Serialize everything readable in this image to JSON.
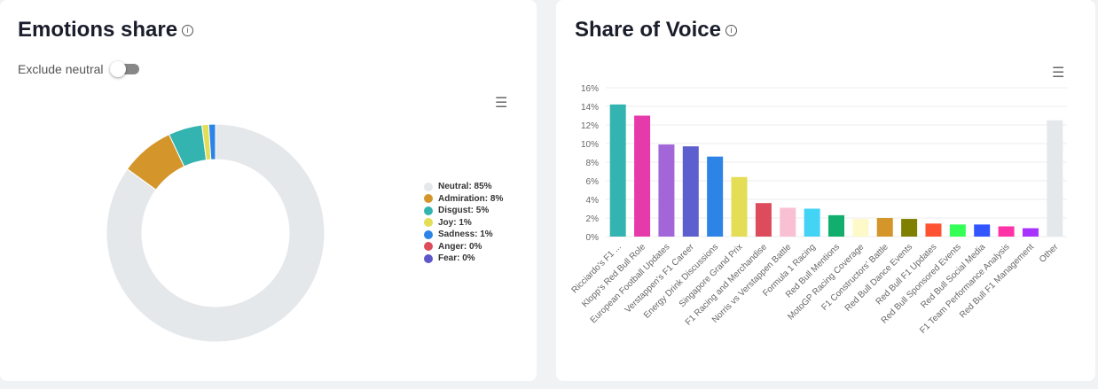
{
  "emotions": {
    "title": "Emotions share",
    "toggle_label": "Exclude neutral",
    "toggle_on": false,
    "chart_data": {
      "type": "pie",
      "donut": true,
      "slices": [
        {
          "label": "Neutral",
          "value": 85,
          "color": "#e5e8eb",
          "legend": "Neutral: 85%"
        },
        {
          "label": "Admiration",
          "value": 8,
          "color": "#d4952a",
          "legend": "Admiration: 8%"
        },
        {
          "label": "Disgust",
          "value": 5,
          "color": "#33b4b0",
          "legend": "Disgust: 5%"
        },
        {
          "label": "Joy",
          "value": 1,
          "color": "#e3de55",
          "legend": "Joy: 1%"
        },
        {
          "label": "Sadness",
          "value": 1,
          "color": "#2b84e6",
          "legend": "Sadness: 1%"
        },
        {
          "label": "Anger",
          "value": 0,
          "color": "#dc4c5c",
          "legend": "Anger: 0%"
        },
        {
          "label": "Fear",
          "value": 0,
          "color": "#5d57c9",
          "legend": "Fear: 0%"
        }
      ],
      "legend": "right"
    }
  },
  "sov": {
    "title": "Share of Voice",
    "chart_data": {
      "type": "bar",
      "ylim": [
        0,
        16
      ],
      "yticks": [
        "0%",
        "2%",
        "4%",
        "6%",
        "8%",
        "10%",
        "12%",
        "14%",
        "16%"
      ],
      "grid": true,
      "categories": [
        "Ricciardo's F1 ...",
        "Klopp's Red Bull Role",
        "European Football Updates",
        "Verstappen's F1 Career",
        "Energy Drink Discussions",
        "Singapore Grand Prix",
        "F1 Racing and Merchandise",
        "Norris vs Verstappen Battle",
        "Formula 1 Racing",
        "Red Bull Mentions",
        "MotoGP Racing Coverage",
        "F1 Constructors' Battle",
        "Red Bull Dance Events",
        "Red Bull F1 Updates",
        "Red Bull Sponsored Events",
        "Red Bull Social Media",
        "F1 Team Performance Analysis",
        "Red Bull F1 Management",
        "Other"
      ],
      "values": [
        14.2,
        13.0,
        9.9,
        9.7,
        8.6,
        6.4,
        3.6,
        3.1,
        3.0,
        2.3,
        1.9,
        2.0,
        1.9,
        1.4,
        1.3,
        1.3,
        1.1,
        0.9,
        12.5
      ],
      "colors": [
        "#33b4b0",
        "#e63aaa",
        "#a366d8",
        "#5d5fcf",
        "#2b84e6",
        "#e3de55",
        "#dc4c5c",
        "#f9bfd3",
        "#42d3f5",
        "#12ae6e",
        "#fdf9c8",
        "#d4952a",
        "#7f7f00",
        "#ff5230",
        "#33ff57",
        "#3355ff",
        "#ff33a6",
        "#a833ff",
        "#e5e8eb"
      ]
    }
  },
  "menu_icon": "hamburger-icon",
  "info_icon": "info-icon"
}
